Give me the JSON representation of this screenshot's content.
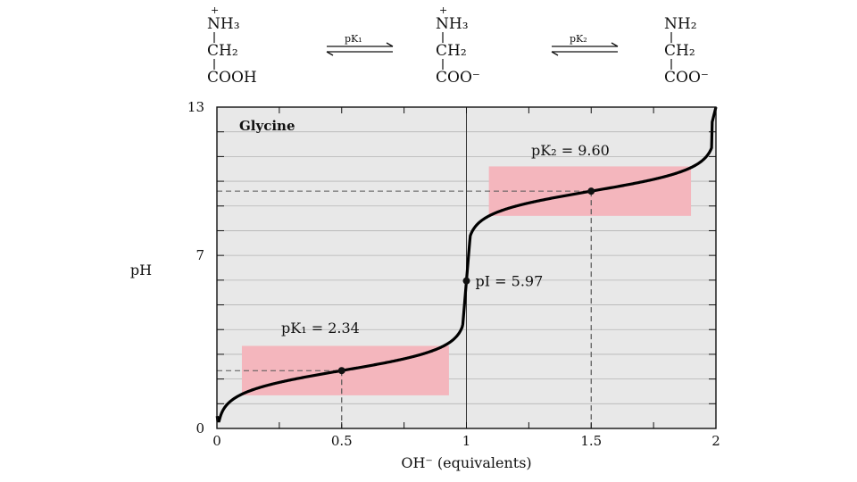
{
  "species": [
    {
      "charge": "+",
      "line1": "NH₃",
      "line2": "CH₂",
      "line3": "COOH"
    },
    {
      "charge": "+",
      "line1": "NH₃",
      "line2": "CH₂",
      "line3": "COO⁻"
    },
    {
      "charge": "",
      "line1": "NH₂",
      "line2": "CH₂",
      "line3": "COO⁻"
    }
  ],
  "equilibria": [
    {
      "label": "pK₁"
    },
    {
      "label": "pK₂"
    }
  ],
  "chart_data": {
    "type": "line",
    "title": "Glycine",
    "xlabel": "OH⁻ (equivalents)",
    "ylabel": "pH",
    "xlim": [
      0,
      2
    ],
    "ylim": [
      0,
      13
    ],
    "x_tick_labels": [
      "0",
      "0.5",
      "1",
      "1.5",
      "2"
    ],
    "x_ticks": [
      0,
      0.5,
      1,
      1.5,
      2
    ],
    "y_tick_labels": [
      "0",
      "7",
      "13"
    ],
    "y_ticks": [
      0,
      7,
      13
    ],
    "grid": "horizontal",
    "series": [
      {
        "name": "Glycine titration curve",
        "pKa1": 2.34,
        "pKa2": 9.6,
        "pI": 5.97
      }
    ],
    "buffer_regions": [
      {
        "x": [
          0.1,
          0.93
        ],
        "y": [
          1.34,
          3.34
        ]
      },
      {
        "x": [
          1.09,
          1.9
        ],
        "y": [
          8.6,
          10.6
        ]
      }
    ],
    "highlighted_points": [
      {
        "x": 0.5,
        "y": 2.34
      },
      {
        "x": 1.0,
        "y": 5.97
      },
      {
        "x": 1.5,
        "y": 9.6
      }
    ],
    "annotations": [
      {
        "text": "pK₁ = 2.34"
      },
      {
        "text": "pI = 5.97"
      },
      {
        "text": "pK₂ = 9.60"
      }
    ],
    "colors": {
      "background": "#e8e8e8",
      "buffer": "#f4b6bd",
      "curve": "#000000"
    }
  }
}
